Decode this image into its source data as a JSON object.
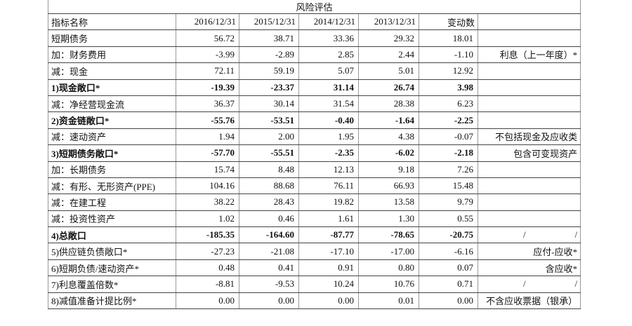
{
  "table": {
    "title": "风险评估",
    "header": [
      "指标名称",
      "2016/12/31",
      "2015/12/31",
      "2014/12/31",
      "2013/12/31",
      "变动数",
      ""
    ],
    "rows": [
      [
        "短期债务",
        "56.72",
        "38.71",
        "33.36",
        "29.32",
        "18.01",
        ""
      ],
      [
        "加：财务费用",
        "-3.99",
        "-2.89",
        "2.85",
        "2.44",
        "-1.10",
        "利息（上一年度）*"
      ],
      [
        "减：现金",
        "72.11",
        "59.19",
        "5.07",
        "5.01",
        "12.92",
        ""
      ],
      [
        "1)现金敞口*",
        "-19.39",
        "-23.37",
        "31.14",
        "26.74",
        "3.98",
        ""
      ],
      [
        "减：净经营现金流",
        "36.37",
        "30.14",
        "31.54",
        "28.38",
        "6.23",
        ""
      ],
      [
        "2)资金链敞口*",
        "-55.76",
        "-53.51",
        "-0.40",
        "-1.64",
        "-2.25",
        ""
      ],
      [
        "减：速动资产",
        "1.94",
        "2.00",
        "1.95",
        "4.38",
        "-0.07",
        "不包括现金及应收类"
      ],
      [
        "3)短期债务敞口*",
        "-57.70",
        "-55.51",
        "-2.35",
        "-6.02",
        "-2.18",
        "包含可变现资产"
      ],
      [
        "加：长期债务",
        "15.74",
        "8.48",
        "12.13",
        "9.18",
        "7.26",
        ""
      ],
      [
        "减：有形、无形资产(PPE)",
        "104.16",
        "88.68",
        "76.11",
        "66.93",
        "15.48",
        ""
      ],
      [
        "减：在建工程",
        "38.22",
        "28.43",
        "19.82",
        "13.58",
        "9.79",
        ""
      ],
      [
        "减：投资性资产",
        "1.02",
        "0.46",
        "1.61",
        "1.30",
        "0.55",
        ""
      ],
      [
        "4)总敞口",
        "-185.35",
        "-164.60",
        "-87.77",
        "-78.65",
        "-20.75",
        [
          "/",
          "/"
        ]
      ],
      [
        "5)供应链负债敞口*",
        "-27.23",
        "-21.08",
        "-17.10",
        "-17.00",
        "-6.16",
        "应付-应收*"
      ],
      [
        "6)短期负债/速动资产*",
        "0.48",
        "0.41",
        "0.91",
        "0.80",
        "0.07",
        "含应收*"
      ],
      [
        "7)利息覆盖倍数*",
        "-8.81",
        "-9.53",
        "10.24",
        "10.76",
        "0.71",
        [
          "/",
          "/"
        ]
      ],
      [
        "8)减值准备计提比例*",
        "0.00",
        "0.00",
        "0.00",
        "0.01",
        "0.00",
        "不含应收票据（银承）"
      ]
    ]
  }
}
